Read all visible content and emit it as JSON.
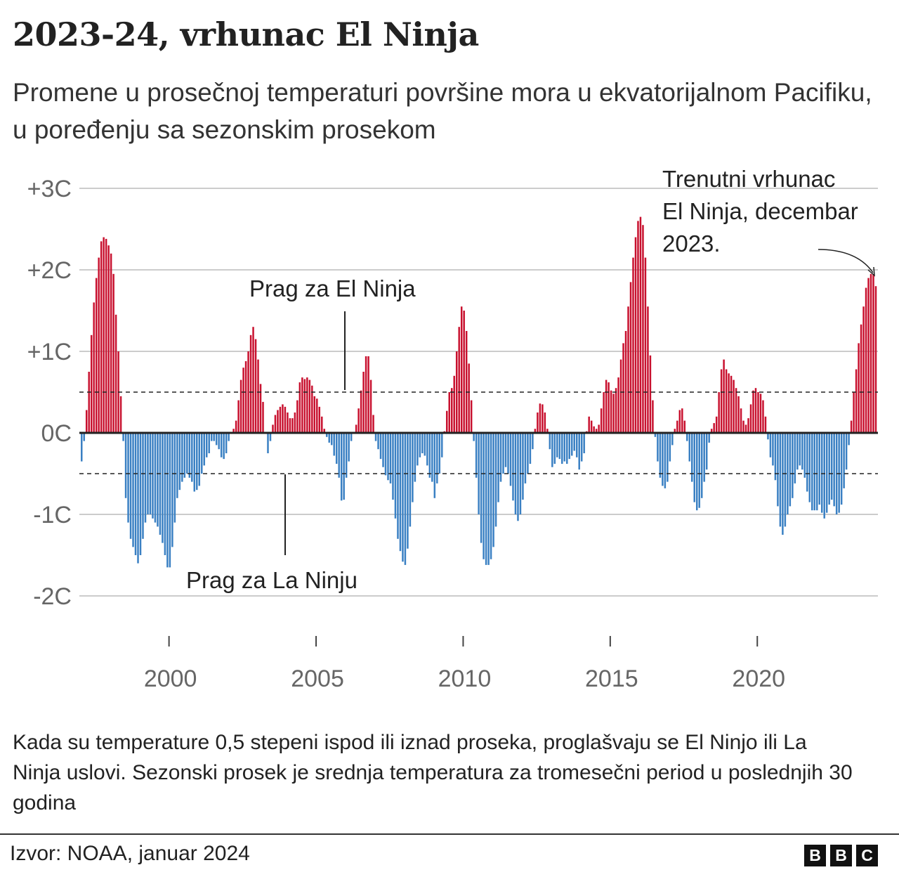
{
  "title": "2023-24, vrhunac El Ninja",
  "subtitle": "Promene u prosečnoj temperaturi površine mora u ekvatorijalnom Pacifiku, u poređenju sa sezonskim prosekom",
  "note": "Kada su temperature 0,5 stepeni ispod ili iznad proseka, proglašvaju se El Ninjo ili La Ninja uslovi. Sezonski prosek je srednja temperatura za tromesečni period u poslednjih 30 godina",
  "source": "Izvor: NOAA, januar 2024",
  "logo": "BBC",
  "chart_data": {
    "type": "bar",
    "title": "2023-24, vrhunac El Ninja",
    "ylim": [
      -2,
      3
    ],
    "yticks": [
      {
        "value": 3,
        "label": "+3C"
      },
      {
        "value": 2,
        "label": "+2C"
      },
      {
        "value": 1,
        "label": "+1C"
      },
      {
        "value": 0,
        "label": "0C"
      },
      {
        "value": -1,
        "label": "-1C"
      },
      {
        "value": -2,
        "label": "-2C"
      }
    ],
    "xticks": [
      {
        "value": 2000,
        "label": "2000"
      },
      {
        "value": 2005,
        "label": "2005"
      },
      {
        "value": 2010,
        "label": "2010"
      },
      {
        "value": 2015,
        "label": "2015"
      },
      {
        "value": 2020,
        "label": "2020"
      }
    ],
    "grid": true,
    "thresholds": [
      {
        "value": 0.5,
        "label": "Prag za El Ninja"
      },
      {
        "value": -0.5,
        "label": "Prag za La Ninju"
      }
    ],
    "annotation": "Trenutni vrhunac El Ninja, decembar 2023.",
    "colors": {
      "positive": "#c8102e",
      "negative": "#3a80c3"
    },
    "start": "1997-01",
    "frequency": "monthly",
    "values": [
      -0.35,
      -0.1,
      0.28,
      0.75,
      1.2,
      1.6,
      1.9,
      2.15,
      2.35,
      2.4,
      2.38,
      2.3,
      2.2,
      1.95,
      1.45,
      1.0,
      0.45,
      -0.1,
      -0.8,
      -1.1,
      -1.3,
      -1.4,
      -1.5,
      -1.6,
      -1.5,
      -1.3,
      -1.1,
      -1.0,
      -1.0,
      -1.05,
      -1.1,
      -1.15,
      -1.25,
      -1.35,
      -1.5,
      -1.65,
      -1.65,
      -1.4,
      -1.1,
      -0.8,
      -0.7,
      -0.6,
      -0.55,
      -0.5,
      -0.55,
      -0.6,
      -0.72,
      -0.7,
      -0.65,
      -0.5,
      -0.4,
      -0.3,
      -0.25,
      -0.1,
      -0.1,
      -0.15,
      -0.2,
      -0.3,
      -0.32,
      -0.25,
      -0.1,
      0.0,
      0.05,
      0.15,
      0.4,
      0.65,
      0.8,
      0.88,
      1.0,
      1.2,
      1.3,
      1.15,
      0.9,
      0.6,
      0.38,
      0.0,
      -0.25,
      -0.1,
      0.1,
      0.22,
      0.28,
      0.32,
      0.35,
      0.32,
      0.25,
      0.18,
      0.18,
      0.25,
      0.4,
      0.62,
      0.68,
      0.66,
      0.68,
      0.65,
      0.58,
      0.45,
      0.42,
      0.32,
      0.2,
      0.05,
      -0.05,
      -0.12,
      -0.15,
      -0.28,
      -0.38,
      -0.55,
      -0.83,
      -0.82,
      -0.55,
      -0.35,
      -0.1,
      0.0,
      0.1,
      0.3,
      0.52,
      0.75,
      0.94,
      0.94,
      0.65,
      0.22,
      -0.1,
      -0.2,
      -0.32,
      -0.42,
      -0.52,
      -0.58,
      -0.62,
      -0.82,
      -1.05,
      -1.3,
      -1.45,
      -1.58,
      -1.62,
      -1.42,
      -1.15,
      -0.85,
      -0.6,
      -0.4,
      -0.3,
      -0.25,
      -0.28,
      -0.4,
      -0.55,
      -0.6,
      -0.8,
      -0.62,
      -0.5,
      -0.3,
      0.02,
      0.27,
      0.5,
      0.55,
      0.7,
      1.0,
      1.3,
      1.55,
      1.5,
      1.25,
      0.85,
      0.4,
      -0.1,
      -0.55,
      -1.0,
      -1.35,
      -1.55,
      -1.62,
      -1.62,
      -1.55,
      -1.4,
      -1.15,
      -0.85,
      -0.6,
      -0.5,
      -0.42,
      -0.5,
      -0.65,
      -0.83,
      -1.0,
      -1.08,
      -1.0,
      -0.82,
      -0.62,
      -0.5,
      -0.38,
      -0.2,
      0.05,
      0.25,
      0.36,
      0.35,
      0.25,
      0.05,
      -0.2,
      -0.42,
      -0.38,
      -0.3,
      -0.32,
      -0.38,
      -0.35,
      -0.38,
      -0.32,
      -0.28,
      -0.22,
      -0.3,
      -0.45,
      -0.35,
      -0.25,
      0.02,
      0.2,
      0.15,
      0.08,
      0.05,
      0.1,
      0.3,
      0.5,
      0.65,
      0.62,
      0.52,
      0.48,
      0.55,
      0.68,
      0.9,
      1.1,
      1.25,
      1.55,
      1.85,
      2.15,
      2.4,
      2.6,
      2.65,
      2.55,
      2.15,
      1.55,
      0.95,
      0.4,
      -0.05,
      -0.35,
      -0.55,
      -0.65,
      -0.68,
      -0.6,
      -0.35,
      -0.15,
      0.05,
      0.15,
      0.28,
      0.3,
      0.15,
      -0.1,
      -0.35,
      -0.6,
      -0.85,
      -0.95,
      -0.92,
      -0.8,
      -0.6,
      -0.45,
      -0.12,
      0.05,
      0.12,
      0.2,
      0.5,
      0.78,
      0.9,
      0.78,
      0.73,
      0.7,
      0.65,
      0.55,
      0.45,
      0.3,
      0.15,
      0.1,
      0.18,
      0.35,
      0.52,
      0.55,
      0.5,
      0.48,
      0.4,
      0.2,
      -0.08,
      -0.3,
      -0.4,
      -0.58,
      -0.9,
      -1.15,
      -1.25,
      -1.15,
      -1.0,
      -0.9,
      -0.8,
      -0.62,
      -0.45,
      -0.4,
      -0.45,
      -0.55,
      -0.72,
      -0.85,
      -0.95,
      -0.95,
      -0.95,
      -0.88,
      -0.98,
      -1.05,
      -0.98,
      -0.88,
      -0.82,
      -0.9,
      -1.0,
      -0.98,
      -0.88,
      -0.68,
      -0.45,
      -0.15,
      0.15,
      0.5,
      0.78,
      1.1,
      1.33,
      1.55,
      1.78,
      1.9,
      1.95,
      1.95,
      1.8
    ]
  }
}
